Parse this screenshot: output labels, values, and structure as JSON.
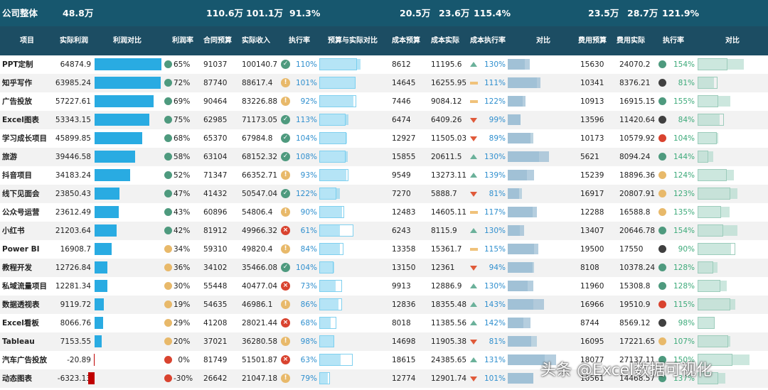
{
  "summary": {
    "label": "公司整体",
    "profit_total": "48.8万",
    "contract_budget": "110.6万",
    "actual_income": "101.1万",
    "exec_rate": "91.3%",
    "cost_budget": "20.5万",
    "cost_actual": "23.6万",
    "cost_exec_rate": "115.4%",
    "fee_budget": "23.5万",
    "fee_actual": "28.7万",
    "fee_exec_rate": "121.9%"
  },
  "headers": [
    "项目",
    "实际利润",
    "利润对比",
    "利润率",
    "合同预算",
    "实际收入",
    "执行率",
    "预算与实际对比",
    "成本预算",
    "成本实际",
    "成本执行率",
    "对比",
    "费用预算",
    "费用实际",
    "执行率",
    "对比"
  ],
  "colors": {
    "accent": "#29abe2",
    "header_bg": "#1c4d63",
    "summary_bg": "#17576e",
    "good": "#4e9a7e",
    "warn": "#e8b96a",
    "bad": "#d9432f",
    "dark": "#404040"
  },
  "rows": [
    {
      "name": "PPT定制",
      "profit": "64874.9",
      "profit_v": 64874.9,
      "margin": "65%",
      "mstat": "good",
      "budget": "91037",
      "income": "100140.7",
      "exec": "110%",
      "estat": "ok",
      "cbudget": "8612",
      "cactual": "11195.6",
      "cexec": "130%",
      "ctrend": "up",
      "fbudget": "15630",
      "factual": "24070.2",
      "fexec": "154%",
      "fstat": "good"
    },
    {
      "name": "知乎写作",
      "profit": "63985.24",
      "profit_v": 63985.24,
      "margin": "72%",
      "mstat": "good",
      "budget": "87740",
      "income": "88617.4",
      "exec": "101%",
      "estat": "warn",
      "cbudget": "14645",
      "cactual": "16255.95",
      "cexec": "111%",
      "ctrend": "flat",
      "fbudget": "10341",
      "factual": "8376.21",
      "fexec": "81%",
      "fstat": "dark"
    },
    {
      "name": "广告投放",
      "profit": "57227.61",
      "profit_v": 57227.61,
      "margin": "69%",
      "mstat": "good",
      "budget": "90464",
      "income": "83226.88",
      "exec": "92%",
      "estat": "warn",
      "cbudget": "7446",
      "cactual": "9084.12",
      "cexec": "122%",
      "ctrend": "flat",
      "fbudget": "10913",
      "factual": "16915.15",
      "fexec": "155%",
      "fstat": "good"
    },
    {
      "name": "Excel图表",
      "profit": "53343.15",
      "profit_v": 53343.15,
      "margin": "75%",
      "mstat": "good",
      "budget": "62985",
      "income": "71173.05",
      "exec": "113%",
      "estat": "ok",
      "cbudget": "6474",
      "cactual": "6409.26",
      "cexec": "99%",
      "ctrend": "down",
      "fbudget": "13596",
      "factual": "11420.64",
      "fexec": "84%",
      "fstat": "dark"
    },
    {
      "name": "学习成长项目",
      "profit": "45899.85",
      "profit_v": 45899.85,
      "margin": "68%",
      "mstat": "good",
      "budget": "65370",
      "income": "67984.8",
      "exec": "104%",
      "estat": "ok",
      "cbudget": "12927",
      "cactual": "11505.03",
      "cexec": "89%",
      "ctrend": "down",
      "fbudget": "10173",
      "factual": "10579.92",
      "fexec": "104%",
      "fstat": "bad"
    },
    {
      "name": "旅游",
      "profit": "39446.58",
      "profit_v": 39446.58,
      "margin": "58%",
      "mstat": "good",
      "budget": "63104",
      "income": "68152.32",
      "exec": "108%",
      "estat": "ok",
      "cbudget": "15855",
      "cactual": "20611.5",
      "cexec": "130%",
      "ctrend": "up",
      "fbudget": "5621",
      "factual": "8094.24",
      "fexec": "144%",
      "fstat": "good"
    },
    {
      "name": "抖音项目",
      "profit": "34183.24",
      "profit_v": 34183.24,
      "margin": "52%",
      "mstat": "good",
      "budget": "71347",
      "income": "66352.71",
      "exec": "93%",
      "estat": "warn",
      "cbudget": "9549",
      "cactual": "13273.11",
      "cexec": "139%",
      "ctrend": "up",
      "fbudget": "15239",
      "factual": "18896.36",
      "fexec": "124%",
      "fstat": "warn"
    },
    {
      "name": "线下见面会",
      "profit": "23850.43",
      "profit_v": 23850.43,
      "margin": "47%",
      "mstat": "good",
      "budget": "41432",
      "income": "50547.04",
      "exec": "122%",
      "estat": "ok",
      "cbudget": "7270",
      "cactual": "5888.7",
      "cexec": "81%",
      "ctrend": "down",
      "fbudget": "16917",
      "factual": "20807.91",
      "fexec": "123%",
      "fstat": "warn"
    },
    {
      "name": "公众号运营",
      "profit": "23612.49",
      "profit_v": 23612.49,
      "margin": "43%",
      "mstat": "good",
      "budget": "60896",
      "income": "54806.4",
      "exec": "90%",
      "estat": "warn",
      "cbudget": "12483",
      "cactual": "14605.11",
      "cexec": "117%",
      "ctrend": "flat",
      "fbudget": "12288",
      "factual": "16588.8",
      "fexec": "135%",
      "fstat": "warn"
    },
    {
      "name": "小红书",
      "profit": "21203.64",
      "profit_v": 21203.64,
      "margin": "42%",
      "mstat": "good",
      "budget": "81912",
      "income": "49966.32",
      "exec": "61%",
      "estat": "bad",
      "cbudget": "6243",
      "cactual": "8115.9",
      "cexec": "130%",
      "ctrend": "up",
      "fbudget": "13407",
      "factual": "20646.78",
      "fexec": "154%",
      "fstat": "good"
    },
    {
      "name": "Power BI",
      "profit": "16908.7",
      "profit_v": 16908.7,
      "margin": "34%",
      "mstat": "warn",
      "budget": "59310",
      "income": "49820.4",
      "exec": "84%",
      "estat": "warn",
      "cbudget": "13358",
      "cactual": "15361.7",
      "cexec": "115%",
      "ctrend": "flat",
      "fbudget": "19500",
      "factual": "17550",
      "fexec": "90%",
      "fstat": "dark"
    },
    {
      "name": "教程开发",
      "profit": "12726.84",
      "profit_v": 12726.84,
      "margin": "36%",
      "mstat": "warn",
      "budget": "34102",
      "income": "35466.08",
      "exec": "104%",
      "estat": "ok",
      "cbudget": "13150",
      "cactual": "12361",
      "cexec": "94%",
      "ctrend": "down",
      "fbudget": "8108",
      "factual": "10378.24",
      "fexec": "128%",
      "fstat": "good"
    },
    {
      "name": "私域流量项目",
      "profit": "12281.34",
      "profit_v": 12281.34,
      "margin": "30%",
      "mstat": "warn",
      "budget": "55448",
      "income": "40477.04",
      "exec": "73%",
      "estat": "bad",
      "cbudget": "9913",
      "cactual": "12886.9",
      "cexec": "130%",
      "ctrend": "up",
      "fbudget": "11960",
      "factual": "15308.8",
      "fexec": "128%",
      "fstat": "good"
    },
    {
      "name": "数据透视表",
      "profit": "9119.72",
      "profit_v": 9119.72,
      "margin": "19%",
      "mstat": "warn",
      "budget": "54635",
      "income": "46986.1",
      "exec": "86%",
      "estat": "warn",
      "cbudget": "12836",
      "cactual": "18355.48",
      "cexec": "143%",
      "ctrend": "up",
      "fbudget": "16966",
      "factual": "19510.9",
      "fexec": "115%",
      "fstat": "bad"
    },
    {
      "name": "Excel看板",
      "profit": "8066.76",
      "profit_v": 8066.76,
      "margin": "29%",
      "mstat": "warn",
      "budget": "41208",
      "income": "28021.44",
      "exec": "68%",
      "estat": "bad",
      "cbudget": "8018",
      "cactual": "11385.56",
      "cexec": "142%",
      "ctrend": "up",
      "fbudget": "8744",
      "factual": "8569.12",
      "fexec": "98%",
      "fstat": "dark"
    },
    {
      "name": "Tableau",
      "profit": "7153.55",
      "profit_v": 7153.55,
      "margin": "20%",
      "mstat": "warn",
      "budget": "37021",
      "income": "36280.58",
      "exec": "98%",
      "estat": "warn",
      "cbudget": "14698",
      "cactual": "11905.38",
      "cexec": "81%",
      "ctrend": "down",
      "fbudget": "16095",
      "factual": "17221.65",
      "fexec": "107%",
      "fstat": "warn"
    },
    {
      "name": "汽车广告投放",
      "profit": "-20.89",
      "profit_v": -20.89,
      "margin": "0%",
      "mstat": "bad",
      "budget": "81749",
      "income": "51501.87",
      "exec": "63%",
      "estat": "bad",
      "cbudget": "18615",
      "cactual": "24385.65",
      "cexec": "131%",
      "ctrend": "up",
      "fbudget": "18077",
      "factual": "27137.11",
      "fexec": "150%",
      "fstat": "good"
    },
    {
      "name": "动态图表",
      "profit": "-6323.13",
      "profit_v": -6323.13,
      "margin": "-30%",
      "mstat": "bad",
      "budget": "26642",
      "income": "21047.18",
      "exec": "79%",
      "estat": "warn",
      "cbudget": "12774",
      "cactual": "12901.74",
      "cexec": "101%",
      "ctrend": "down",
      "fbudget": "10561",
      "factual": "14468.57",
      "fexec": "137%",
      "fstat": "good"
    }
  ],
  "watermark": "头条 @Excel数据可视化"
}
